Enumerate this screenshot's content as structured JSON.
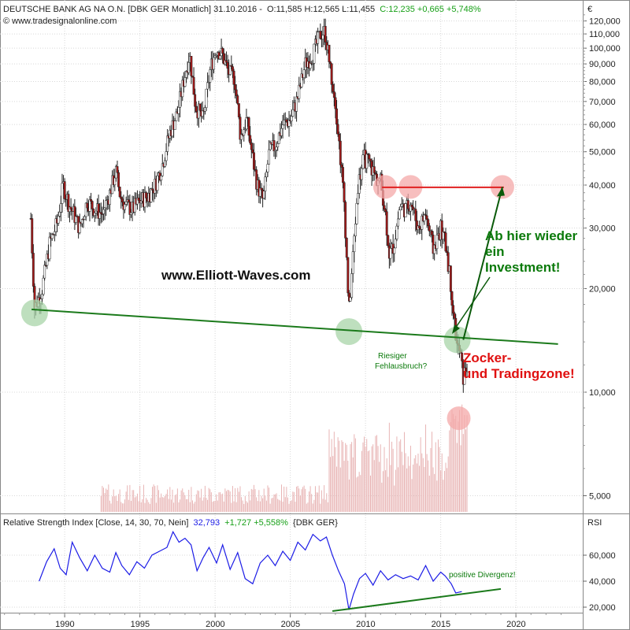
{
  "header": {
    "title": "DEUTSCHE BANK AG NA O.N. [DBK GER  Monatlich] 31.10.2016 -",
    "ohlc": "O:11,585 H:12,565 L:11,455",
    "close_change": "C:12,235 +0,665 +5,748%",
    "source": "© www.tradesignalonline.com",
    "currency": "€"
  },
  "rsi_header": {
    "title": "Relative Strength Index [Close, 14, 30, 70, Nein]",
    "value": "32,793",
    "change": "+1,727 +5,558%",
    "symbol": "{DBK GER}",
    "axis_label": "RSI"
  },
  "annotations": {
    "website": "www.Elliott-Waves.com",
    "investment": [
      "Ab hier wieder",
      "ein",
      "Investment!"
    ],
    "zocker": [
      "Zocker-",
      "und Tradingzone!"
    ],
    "fehlausbruch": [
      "Riesiger",
      "Fehlausbruch?"
    ],
    "divergenz": "positive Divergenz!"
  },
  "colors": {
    "up_candle": "#ffffff",
    "down_candle": "#a01818",
    "support_line": "#1b7a1b",
    "resistance_line": "#e02020",
    "rsi_line": "#1c1ce6",
    "volume": "#e8b4b4",
    "circle_green": "#a8d4a8",
    "circle_red": "#f4a8a8",
    "green_text": "#0b7a0b",
    "red_text": "#e01010"
  },
  "chart_data": [
    {
      "type": "candlestick",
      "scale": "log",
      "x": [
        1987.75,
        1988.0,
        1988.5,
        1989.0,
        1989.5,
        1989.9,
        1990.3,
        1990.6,
        1991.0,
        1991.5,
        1992.0,
        1992.5,
        1993.0,
        1993.4,
        1993.7,
        1994.0,
        1994.5,
        1995.0,
        1995.5,
        1996.0,
        1996.5,
        1997.0,
        1997.5,
        1997.9,
        1998.3,
        1998.7,
        1999.2,
        1999.7,
        2000.1,
        2000.5,
        2000.9,
        2001.3,
        2001.7,
        2002.1,
        2002.5,
        2002.8,
        2003.2,
        2003.6,
        2004.0,
        2004.5,
        2005.0,
        2005.5,
        2006.0,
        2006.5,
        2007.0,
        2007.3,
        2007.7,
        2008.0,
        2008.3,
        2008.6,
        2008.9,
        2009.2,
        2009.5,
        2009.9,
        2010.3,
        2010.7,
        2011.0,
        2011.3,
        2011.6,
        2011.9,
        2012.3,
        2012.7,
        2013.0,
        2013.5,
        2014.0,
        2014.5,
        2015.0,
        2015.4,
        2015.7,
        2015.9,
        2016.1,
        2016.3,
        2016.5,
        2016.8
      ],
      "close": [
        32000,
        17500,
        20000,
        27000,
        31000,
        40000,
        35000,
        33000,
        30000,
        36000,
        34000,
        33000,
        38000,
        44000,
        37000,
        35000,
        34000,
        36000,
        37000,
        40000,
        46000,
        57000,
        65000,
        80000,
        96000,
        68000,
        62000,
        88000,
        100000,
        95000,
        85000,
        82000,
        55000,
        62000,
        48000,
        40000,
        36000,
        50000,
        52000,
        60000,
        62000,
        72000,
        90000,
        96000,
        110000,
        112000,
        85000,
        70000,
        50000,
        35000,
        17000,
        26000,
        40000,
        48000,
        46000,
        42000,
        41000,
        34000,
        25000,
        27000,
        35000,
        34000,
        36000,
        30000,
        33000,
        26000,
        30000,
        26000,
        20000,
        16000,
        13500,
        13000,
        11000,
        12235
      ],
      "yticks": [
        5000,
        10000,
        20000,
        30000,
        40000,
        50000,
        60000,
        70000,
        80000,
        90000,
        100000,
        110000,
        120000
      ],
      "ytick_labels": [
        "5,000",
        "10,000",
        "20,000",
        "30,000",
        "40,000",
        "50,000",
        "60,000",
        "70,000",
        "80,000",
        "90,000",
        "100,000",
        "110,000",
        "120,000"
      ],
      "xticks": [
        1990,
        1995,
        2000,
        2005,
        2010,
        2015,
        2020
      ],
      "support_line": {
        "x": [
          1987.8,
          2022.8
        ],
        "y": [
          17400,
          13800
        ]
      },
      "resistance_line": {
        "x": [
          2011.1,
          2019.2
        ],
        "y": [
          39400,
          39400
        ]
      },
      "investment_arrow": {
        "x": [
          2016.5,
          2019.1
        ],
        "y": [
          14200,
          39500
        ]
      },
      "green_circles": [
        {
          "x": 1988.0,
          "y": 17000
        },
        {
          "x": 2008.9,
          "y": 15000
        },
        {
          "x": 2016.1,
          "y": 14200
        }
      ],
      "red_circles": [
        {
          "x": 2011.3,
          "y": 39500
        },
        {
          "x": 2013.0,
          "y": 39500
        },
        {
          "x": 2019.1,
          "y": 39500
        },
        {
          "x": 2016.2,
          "y": 8400
        }
      ]
    },
    {
      "type": "line",
      "title": "Relative Strength Index",
      "x": [
        1988.3,
        1988.8,
        1989.3,
        1989.7,
        1990.1,
        1990.5,
        1991.0,
        1991.5,
        1992.0,
        1992.5,
        1993.0,
        1993.4,
        1993.8,
        1994.3,
        1994.8,
        1995.3,
        1995.8,
        1996.3,
        1996.8,
        1997.2,
        1997.6,
        1998.0,
        1998.4,
        1998.8,
        1999.2,
        1999.6,
        2000.1,
        2000.5,
        2001.0,
        2001.5,
        2002.0,
        2002.5,
        2003.0,
        2003.5,
        2004.0,
        2004.5,
        2005.0,
        2005.5,
        2006.0,
        2006.5,
        2007.0,
        2007.4,
        2007.8,
        2008.2,
        2008.6,
        2008.9,
        2009.2,
        2009.6,
        2010.0,
        2010.5,
        2011.0,
        2011.5,
        2012.0,
        2012.5,
        2013.0,
        2013.5,
        2014.0,
        2014.5,
        2015.0,
        2015.3,
        2015.7,
        2016.0,
        2016.4
      ],
      "y": [
        40,
        55,
        65,
        50,
        45,
        70,
        58,
        48,
        60,
        50,
        47,
        62,
        52,
        45,
        55,
        50,
        60,
        63,
        66,
        78,
        70,
        73,
        68,
        48,
        58,
        66,
        54,
        68,
        49,
        62,
        42,
        38,
        54,
        60,
        52,
        63,
        56,
        70,
        64,
        76,
        71,
        74,
        60,
        48,
        38,
        18,
        30,
        42,
        46,
        37,
        48,
        41,
        45,
        42,
        44,
        41,
        52,
        40,
        47,
        44,
        38,
        31,
        32
      ],
      "yticks": [
        20000,
        40000,
        60000
      ],
      "ytick_labels": [
        "20,000",
        "40,000",
        "60,000"
      ],
      "divergence_line": {
        "x": [
          2007.8,
          2019.0
        ],
        "y": [
          17,
          34
        ]
      }
    }
  ]
}
